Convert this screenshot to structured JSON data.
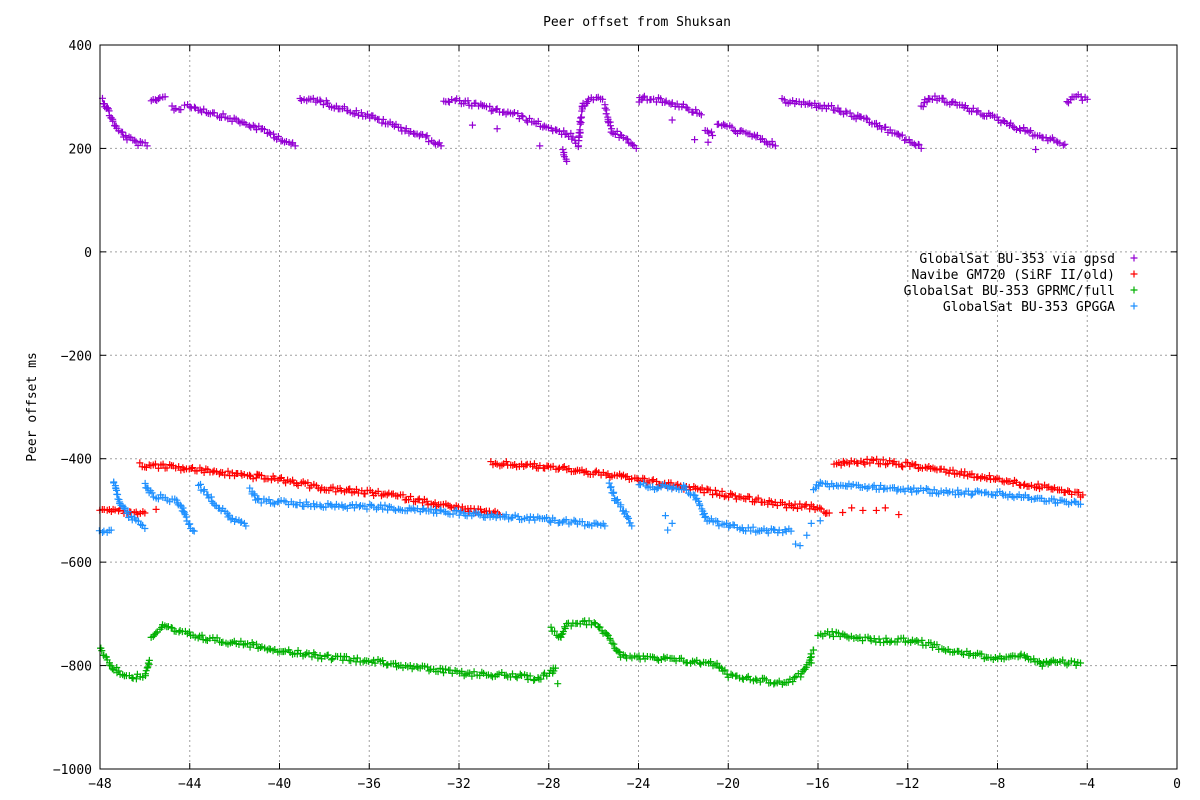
{
  "chart_data": {
    "type": "scatter",
    "title": "Peer offset from Shuksan",
    "xlabel": "",
    "ylabel": "Peer offset ms",
    "xlim": [
      -48,
      0
    ],
    "ylim": [
      -1000,
      400
    ],
    "xticks": [
      -48,
      -44,
      -40,
      -36,
      -32,
      -28,
      -24,
      -20,
      -16,
      -12,
      -8,
      -4,
      0
    ],
    "yticks": [
      -1000,
      -800,
      -600,
      -400,
      -200,
      0,
      200,
      400
    ],
    "xtick_labels": [
      "−48",
      "−44",
      "−40",
      "−36",
      "−32",
      "−28",
      "−24",
      "−20",
      "−16",
      "−12",
      "−8",
      "−4",
      "0"
    ],
    "ytick_labels": [
      "−1000",
      "−800",
      "−600",
      "−400",
      "−200",
      "0",
      "200",
      "400"
    ],
    "grid": true,
    "marker": "+",
    "legend_position": "right",
    "series": [
      {
        "name": "GlobalSat BU-353 via gpsd",
        "color": "#9400d3",
        "segments": [
          [
            [
              -47.9,
              295
            ],
            [
              -47.6,
              270
            ],
            [
              -47.3,
              240
            ],
            [
              -46.8,
              220
            ],
            [
              -46.3,
              210
            ],
            [
              -45.9,
              205
            ]
          ],
          [
            [
              -45.7,
              290
            ],
            [
              -45.4,
              298
            ],
            [
              -45.1,
              300
            ]
          ],
          [
            [
              -44.8,
              280
            ],
            [
              -44.4,
              275
            ]
          ],
          [
            [
              -44.2,
              285
            ],
            [
              -42.5,
              262
            ],
            [
              -41.0,
              240
            ],
            [
              -39.5,
              210
            ],
            [
              -39.3,
              205
            ]
          ],
          [
            [
              -39.1,
              292
            ],
            [
              -38.5,
              295
            ],
            [
              -36.0,
              262
            ],
            [
              -33.5,
              222
            ],
            [
              -32.8,
              205
            ]
          ],
          [
            [
              -32.7,
              290
            ],
            [
              -32.0,
              292
            ],
            [
              -29.5,
              265
            ],
            [
              -28.0,
              240
            ],
            [
              -27.0,
              225
            ],
            [
              -26.8,
              210
            ]
          ],
          [
            [
              -27.4,
              195
            ],
            [
              -27.2,
              175
            ]
          ],
          [
            [
              -26.7,
              205
            ],
            [
              -26.5,
              280
            ],
            [
              -26.2,
              298
            ],
            [
              -25.6,
              295
            ]
          ],
          [
            [
              -25.5,
              280
            ],
            [
              -25.2,
              235
            ],
            [
              -24.5,
              215
            ],
            [
              -24.1,
              200
            ]
          ],
          [
            [
              -24.0,
              292
            ],
            [
              -23.8,
              300
            ],
            [
              -22.0,
              282
            ],
            [
              -21.2,
              265
            ]
          ],
          [
            [
              -21.0,
              235
            ],
            [
              -20.7,
              225
            ]
          ],
          [
            [
              -20.5,
              250
            ],
            [
              -19.5,
              232
            ],
            [
              -18.5,
              218
            ],
            [
              -17.9,
              205
            ]
          ],
          [
            [
              -17.6,
              292
            ],
            [
              -15.5,
              280
            ],
            [
              -13.5,
              248
            ],
            [
              -11.7,
              210
            ],
            [
              -11.4,
              200
            ]
          ],
          [
            [
              -11.4,
              280
            ],
            [
              -11.1,
              298
            ],
            [
              -10.5,
              295
            ],
            [
              -8.5,
              265
            ],
            [
              -6.5,
              230
            ],
            [
              -5.0,
              208
            ]
          ],
          [
            [
              -4.9,
              288
            ],
            [
              -4.6,
              302
            ],
            [
              -4.0,
              295
            ]
          ]
        ],
        "outliers": [
          [
            -31.4,
            245
          ],
          [
            -30.3,
            238
          ],
          [
            -28.4,
            205
          ],
          [
            -22.5,
            255
          ],
          [
            -21.5,
            217
          ],
          [
            -20.9,
            212
          ],
          [
            -6.3,
            198
          ]
        ]
      },
      {
        "name": "Navibe GM720 (SiRF II/old)",
        "color": "#ff0000",
        "segments": [
          [
            [
              -48.0,
              -497
            ],
            [
              -47.0,
              -502
            ],
            [
              -46.0,
              -505
            ]
          ],
          [
            [
              -46.2,
              -412
            ],
            [
              -45.0,
              -415
            ],
            [
              -43.0,
              -425
            ],
            [
              -40.0,
              -440
            ],
            [
              -38.0,
              -458
            ],
            [
              -35.0,
              -470
            ],
            [
              -32.5,
              -492
            ],
            [
              -30.2,
              -508
            ]
          ],
          [
            [
              -30.6,
              -410
            ],
            [
              -30.0,
              -410
            ],
            [
              -27.5,
              -418
            ],
            [
              -24.0,
              -440
            ],
            [
              -20.0,
              -470
            ],
            [
              -17.5,
              -490
            ],
            [
              -16.0,
              -495
            ],
            [
              -15.5,
              -505
            ]
          ],
          [
            [
              -15.3,
              -410
            ],
            [
              -13.5,
              -405
            ],
            [
              -12.0,
              -412
            ],
            [
              -10.0,
              -425
            ],
            [
              -8.0,
              -440
            ],
            [
              -6.0,
              -455
            ],
            [
              -4.2,
              -470
            ]
          ]
        ],
        "outliers": [
          [
            -45.5,
            -498
          ],
          [
            -14.9,
            -504
          ],
          [
            -14.5,
            -495
          ],
          [
            -14.0,
            -500
          ],
          [
            -13.4,
            -500
          ],
          [
            -13.0,
            -495
          ],
          [
            -12.4,
            -508
          ],
          [
            -41.0,
            -430
          ]
        ]
      },
      {
        "name": "GlobalSat BU-353 GPRMC/full",
        "color": "#00b000",
        "segments": [
          [
            [
              -48.0,
              -765
            ],
            [
              -47.5,
              -800
            ],
            [
              -47.0,
              -818
            ],
            [
              -46.5,
              -822
            ],
            [
              -46.0,
              -818
            ],
            [
              -45.8,
              -790
            ]
          ],
          [
            [
              -45.7,
              -745
            ],
            [
              -45.2,
              -725
            ],
            [
              -44.5,
              -735
            ],
            [
              -43.0,
              -750
            ],
            [
              -41.5,
              -758
            ],
            [
              -40.0,
              -770
            ],
            [
              -38.0,
              -783
            ],
            [
              -36.0,
              -790
            ],
            [
              -34.0,
              -803
            ],
            [
              -32.0,
              -815
            ],
            [
              -30.0,
              -818
            ],
            [
              -28.5,
              -825
            ],
            [
              -28.0,
              -815
            ],
            [
              -27.7,
              -805
            ]
          ],
          [
            [
              -27.9,
              -730
            ],
            [
              -27.5,
              -745
            ],
            [
              -27.2,
              -720
            ],
            [
              -26.5,
              -715
            ],
            [
              -25.8,
              -720
            ],
            [
              -25.3,
              -750
            ],
            [
              -24.8,
              -780
            ],
            [
              -24.0,
              -785
            ],
            [
              -22.0,
              -790
            ],
            [
              -20.5,
              -798
            ],
            [
              -20.0,
              -818
            ],
            [
              -18.5,
              -828
            ],
            [
              -17.5,
              -835
            ],
            [
              -16.8,
              -818
            ],
            [
              -16.5,
              -800
            ],
            [
              -16.2,
              -770
            ]
          ],
          [
            [
              -16.0,
              -742
            ],
            [
              -15.5,
              -738
            ],
            [
              -14.0,
              -748
            ],
            [
              -13.0,
              -752
            ],
            [
              -12.0,
              -750
            ],
            [
              -11.0,
              -760
            ],
            [
              -10.0,
              -770
            ],
            [
              -9.0,
              -780
            ],
            [
              -8.0,
              -785
            ],
            [
              -7.0,
              -780
            ],
            [
              -6.5,
              -790
            ],
            [
              -6.0,
              -800
            ],
            [
              -5.5,
              -790
            ],
            [
              -5.0,
              -795
            ],
            [
              -4.3,
              -795
            ]
          ]
        ],
        "outliers": [
          [
            -27.8,
            -805
          ],
          [
            -27.6,
            -835
          ],
          [
            -16.3,
            -795
          ]
        ]
      },
      {
        "name": "GlobalSat BU-353 GPGGA",
        "color": "#1e90ff",
        "segments": [
          [
            [
              -48.0,
              -540
            ],
            [
              -47.5,
              -538
            ]
          ],
          [
            [
              -47.4,
              -442
            ],
            [
              -47.1,
              -485
            ],
            [
              -46.7,
              -510
            ],
            [
              -46.3,
              -525
            ],
            [
              -46.0,
              -535
            ]
          ],
          [
            [
              -46.0,
              -450
            ],
            [
              -45.7,
              -470
            ],
            [
              -45.0,
              -478
            ],
            [
              -44.6,
              -480
            ],
            [
              -44.3,
              -500
            ],
            [
              -44.0,
              -530
            ],
            [
              -43.8,
              -540
            ]
          ],
          [
            [
              -43.6,
              -450
            ],
            [
              -43.0,
              -480
            ],
            [
              -42.5,
              -500
            ],
            [
              -42.0,
              -520
            ],
            [
              -41.5,
              -530
            ]
          ],
          [
            [
              -41.3,
              -460
            ],
            [
              -41.0,
              -480
            ],
            [
              -39.0,
              -488
            ],
            [
              -35.0,
              -495
            ],
            [
              -32.0,
              -505
            ],
            [
              -29.0,
              -515
            ],
            [
              -27.0,
              -522
            ],
            [
              -25.5,
              -530
            ]
          ],
          [
            [
              -25.3,
              -450
            ],
            [
              -25.0,
              -480
            ],
            [
              -24.5,
              -510
            ],
            [
              -24.3,
              -530
            ]
          ],
          [
            [
              -24.0,
              -450
            ],
            [
              -23.3,
              -455
            ],
            [
              -22.0,
              -455
            ],
            [
              -21.5,
              -470
            ],
            [
              -21.0,
              -515
            ],
            [
              -20.5,
              -525
            ],
            [
              -19.5,
              -535
            ],
            [
              -18.0,
              -540
            ],
            [
              -17.2,
              -540
            ]
          ],
          [
            [
              -16.2,
              -460
            ],
            [
              -16.0,
              -450
            ],
            [
              -14.0,
              -452
            ],
            [
              -12.0,
              -460
            ],
            [
              -10.0,
              -465
            ],
            [
              -8.0,
              -468
            ],
            [
              -6.0,
              -478
            ],
            [
              -4.3,
              -488
            ]
          ]
        ],
        "outliers": [
          [
            -22.8,
            -510
          ],
          [
            -22.5,
            -525
          ],
          [
            -22.7,
            -538
          ],
          [
            -17.0,
            -565
          ],
          [
            -16.8,
            -568
          ],
          [
            -16.5,
            -548
          ],
          [
            -16.3,
            -525
          ],
          [
            -15.9,
            -520
          ]
        ]
      }
    ]
  }
}
